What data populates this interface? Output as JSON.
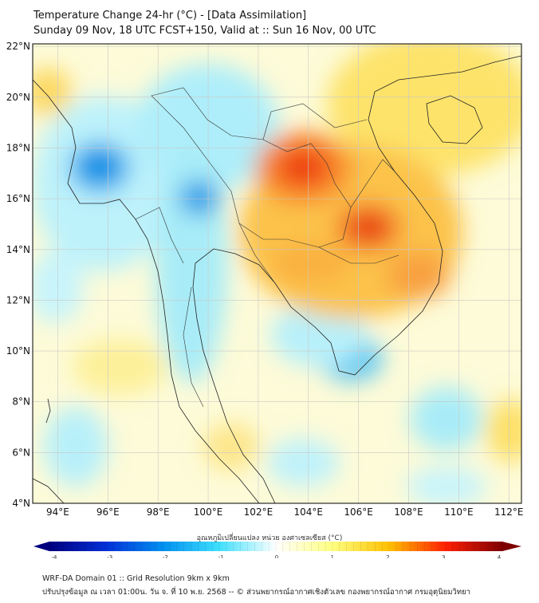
{
  "title": {
    "line1": "Temperature Change 24-hr (°C) - [Data Assimilation]",
    "line2": "Sunday 09 Nov, 18 UTC FCST+150, Valid at :: Sun 16 Nov, 00 UTC"
  },
  "map": {
    "lon_range": [
      93,
      112.5
    ],
    "lat_range": [
      4,
      22.1
    ],
    "lon_ticks": [
      94,
      96,
      98,
      100,
      102,
      104,
      106,
      108,
      110,
      112
    ],
    "lon_labels": [
      "94°E",
      "96°E",
      "98°E",
      "100°E",
      "102°E",
      "104°E",
      "106°E",
      "108°E",
      "110°E",
      "112°E"
    ],
    "lat_ticks": [
      22,
      20,
      18,
      16,
      14,
      12,
      10,
      8,
      6,
      4
    ],
    "lat_labels": [
      "22°N",
      "20°N",
      "18°N",
      "16°N",
      "14°N",
      "12°N",
      "10°N",
      "8°N",
      "6°N",
      "4°N"
    ]
  },
  "colorbar": {
    "label": "อุณหภูมิเปลี่ยนแปลง หน่วย องศาเซลเซียส (°C)",
    "ticks": [
      "-4",
      "-3",
      "-2",
      "-1",
      "0",
      "1",
      "2",
      "3",
      "4"
    ],
    "range": [
      -4,
      4
    ],
    "colors": [
      "#00007f",
      "#0030d8",
      "#0090f0",
      "#40e0ff",
      "#ffffff",
      "#ffff80",
      "#ffc000",
      "#ff2000",
      "#7f0000"
    ]
  },
  "footer": {
    "line1": "WRF-DA Domain 01 :: Grid Resolution 9km x 9km",
    "line2": "ปรับปรุงข้อมูล ณ เวลา 01:00น. วัน จ. ที่ 10 พ.ย. 2568 -- © ส่วนพยากรณ์อากาศเชิงตัวเลข กองพยากรณ์อากาศ กรมอุตุนิยมวิทยา"
  }
}
